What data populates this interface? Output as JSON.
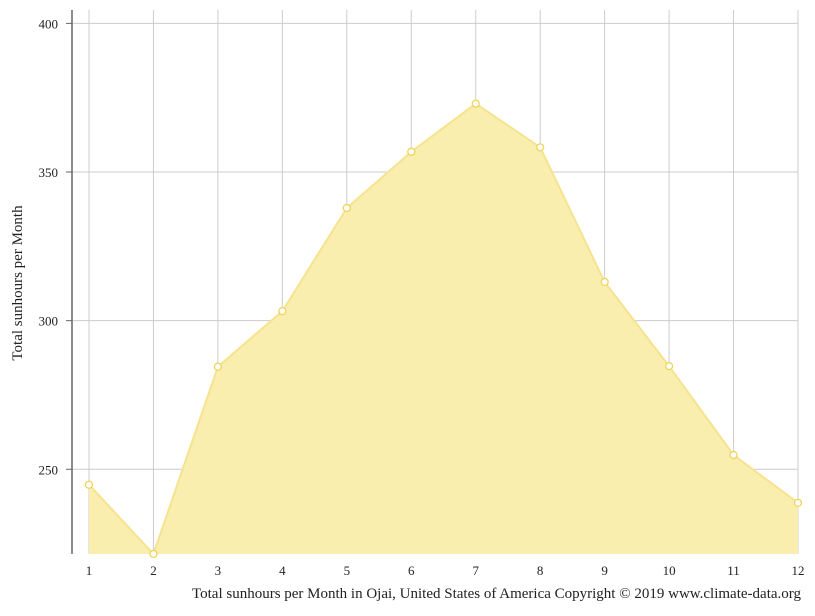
{
  "chart_data": {
    "type": "area",
    "x": [
      1,
      2,
      3,
      4,
      5,
      6,
      7,
      8,
      9,
      10,
      11,
      12
    ],
    "values": [
      244.8,
      221.5,
      284.5,
      303.2,
      337.9,
      356.8,
      373.0,
      358.3,
      313.0,
      284.7,
      254.8,
      238.7
    ],
    "x_tick_labels": [
      "1",
      "2",
      "3",
      "4",
      "5",
      "6",
      "7",
      "8",
      "9",
      "10",
      "11",
      "12"
    ],
    "y_ticks": [
      250,
      300,
      350,
      400
    ],
    "y_tick_labels": [
      "250",
      "300",
      "350",
      "400"
    ],
    "ylim": [
      221.5,
      404.5
    ],
    "xlim": [
      1,
      12
    ],
    "xlabel": "",
    "ylabel": "Total sunhours per Month",
    "caption": "Total sunhours per Month in Ojai, United States of America Copyright © 2019 www.climate-data.org",
    "grid": true,
    "legend": "none",
    "colors": {
      "area_fill": "#f9eeae",
      "line": "#f6e38f",
      "marker_fill": "#ffffff",
      "marker_stroke": "#f1d35a",
      "grid": "#cccccc",
      "axis": "#666666"
    }
  }
}
